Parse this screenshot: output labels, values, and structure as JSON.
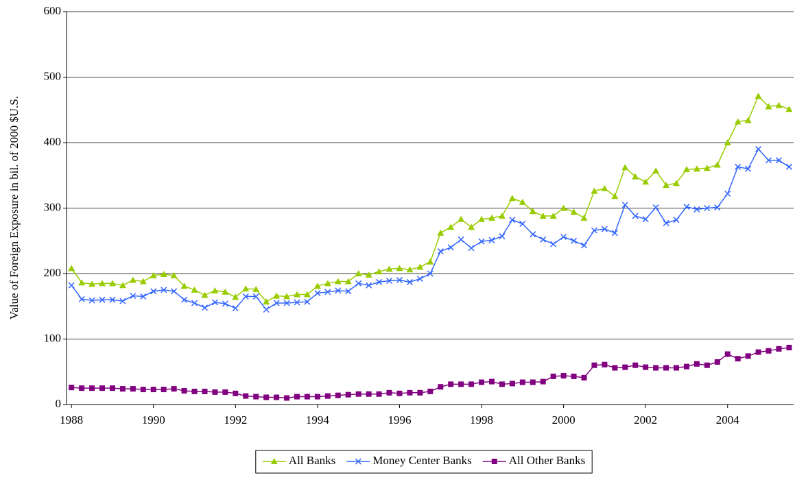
{
  "chart_data": {
    "type": "line",
    "y_label": "Value of Foreign Exposure in bil. of 2000 $U.S.",
    "x": [
      1988,
      1988.25,
      1988.5,
      1988.75,
      1989,
      1989.25,
      1989.5,
      1989.75,
      1990,
      1990.25,
      1990.5,
      1990.75,
      1991,
      1991.25,
      1991.5,
      1991.75,
      1992,
      1992.25,
      1992.5,
      1992.75,
      1993,
      1993.25,
      1993.5,
      1993.75,
      1994,
      1994.25,
      1994.5,
      1994.75,
      1995,
      1995.25,
      1995.5,
      1995.75,
      1996,
      1996.25,
      1996.5,
      1996.75,
      1997,
      1997.25,
      1997.5,
      1997.75,
      1998,
      1998.25,
      1998.5,
      1998.75,
      1999,
      1999.25,
      1999.5,
      1999.75,
      2000,
      2000.25,
      2000.5,
      2000.75,
      2001,
      2001.25,
      2001.5,
      2001.75,
      2002,
      2002.25,
      2002.5,
      2002.75,
      2003,
      2003.25,
      2003.5,
      2003.75,
      2004,
      2004.25,
      2004.5,
      2004.75,
      2005,
      2005.25,
      2005.5
    ],
    "series": [
      {
        "name": "All Banks",
        "color": "#99cc00",
        "marker": "triangle",
        "values": [
          208,
          186,
          184,
          185,
          185,
          182,
          190,
          188,
          197,
          199,
          197,
          181,
          175,
          167,
          174,
          172,
          164,
          177,
          176,
          157,
          166,
          165,
          168,
          168,
          181,
          185,
          188,
          188,
          200,
          198,
          203,
          207,
          208,
          206,
          210,
          218,
          262,
          271,
          283,
          271,
          283,
          285,
          288,
          315,
          309,
          295,
          288,
          288,
          300,
          294,
          285,
          326,
          330,
          318,
          362,
          348,
          340,
          357,
          335,
          338,
          359,
          360,
          361,
          366,
          400,
          432,
          434,
          471,
          455,
          457,
          451
        ]
      },
      {
        "name": "Money Center Banks",
        "color": "#3366ff",
        "marker": "x",
        "values": [
          182,
          161,
          159,
          160,
          160,
          158,
          166,
          165,
          173,
          175,
          173,
          160,
          155,
          148,
          156,
          154,
          147,
          165,
          165,
          145,
          155,
          155,
          156,
          157,
          170,
          172,
          174,
          173,
          185,
          182,
          187,
          189,
          190,
          187,
          192,
          200,
          234,
          240,
          252,
          239,
          249,
          251,
          257,
          282,
          276,
          260,
          252,
          245,
          256,
          250,
          243,
          266,
          268,
          262,
          305,
          288,
          283,
          301,
          277,
          282,
          302,
          298,
          300,
          301,
          322,
          363,
          360,
          390,
          373,
          373,
          363
        ]
      },
      {
        "name": "All Other Banks",
        "color": "#800080",
        "marker": "square",
        "values": [
          26,
          25,
          25,
          25,
          25,
          24,
          24,
          23,
          23,
          23,
          24,
          21,
          20,
          20,
          19,
          19,
          17,
          13,
          12,
          11,
          11,
          10,
          12,
          12,
          12,
          13,
          14,
          15,
          16,
          16,
          16,
          18,
          17,
          18,
          18,
          20,
          27,
          31,
          31,
          31,
          34,
          35,
          31,
          32,
          34,
          34,
          35,
          43,
          44,
          43,
          41,
          60,
          61,
          56,
          57,
          60,
          57,
          56,
          56,
          56,
          58,
          62,
          60,
          65,
          77,
          70,
          74,
          80,
          82,
          85,
          87
        ]
      }
    ],
    "xlim": [
      1987.88,
      2005.61
    ],
    "xticks": [
      1988,
      1990,
      1992,
      1994,
      1996,
      1998,
      2000,
      2002,
      2004
    ],
    "ylim": [
      0,
      600
    ],
    "yticks": [
      0,
      100,
      200,
      300,
      400,
      500,
      600
    ],
    "grid": true,
    "legend": "bottom"
  }
}
